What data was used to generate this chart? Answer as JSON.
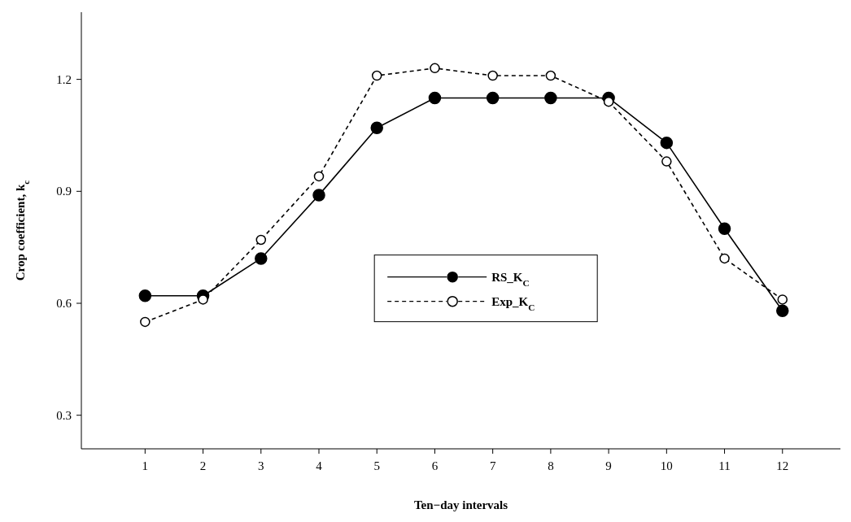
{
  "chart_data": {
    "type": "line",
    "xlabel": "Ten−day intervals",
    "ylabel": "Crop coefficient, k$_{c}$",
    "x": [
      1,
      2,
      3,
      4,
      5,
      6,
      7,
      8,
      9,
      10,
      11,
      12
    ],
    "xlim": [
      -0.1,
      13
    ],
    "xticks": [
      1,
      2,
      3,
      4,
      5,
      6,
      7,
      8,
      9,
      10,
      11,
      12
    ],
    "ylim": [
      0.21,
      1.38
    ],
    "yticks": [
      0.3,
      0.6,
      0.9,
      1.2
    ],
    "grid": false,
    "legend": "center",
    "marker": "circle",
    "series": [
      {
        "name": "RS_K$_{C}$",
        "color": "#000000",
        "line_style": "solid",
        "values": [
          0.62,
          0.62,
          0.72,
          0.89,
          1.07,
          1.15,
          1.15,
          1.15,
          1.15,
          1.03,
          0.8,
          0.58
        ]
      },
      {
        "name": "Exp_K$_{C}$",
        "color": "#000000",
        "line_style": "dashed",
        "values": [
          0.55,
          0.61,
          0.77,
          0.94,
          1.21,
          1.23,
          1.21,
          1.21,
          1.14,
          0.98,
          0.72,
          0.61
        ]
      }
    ]
  }
}
